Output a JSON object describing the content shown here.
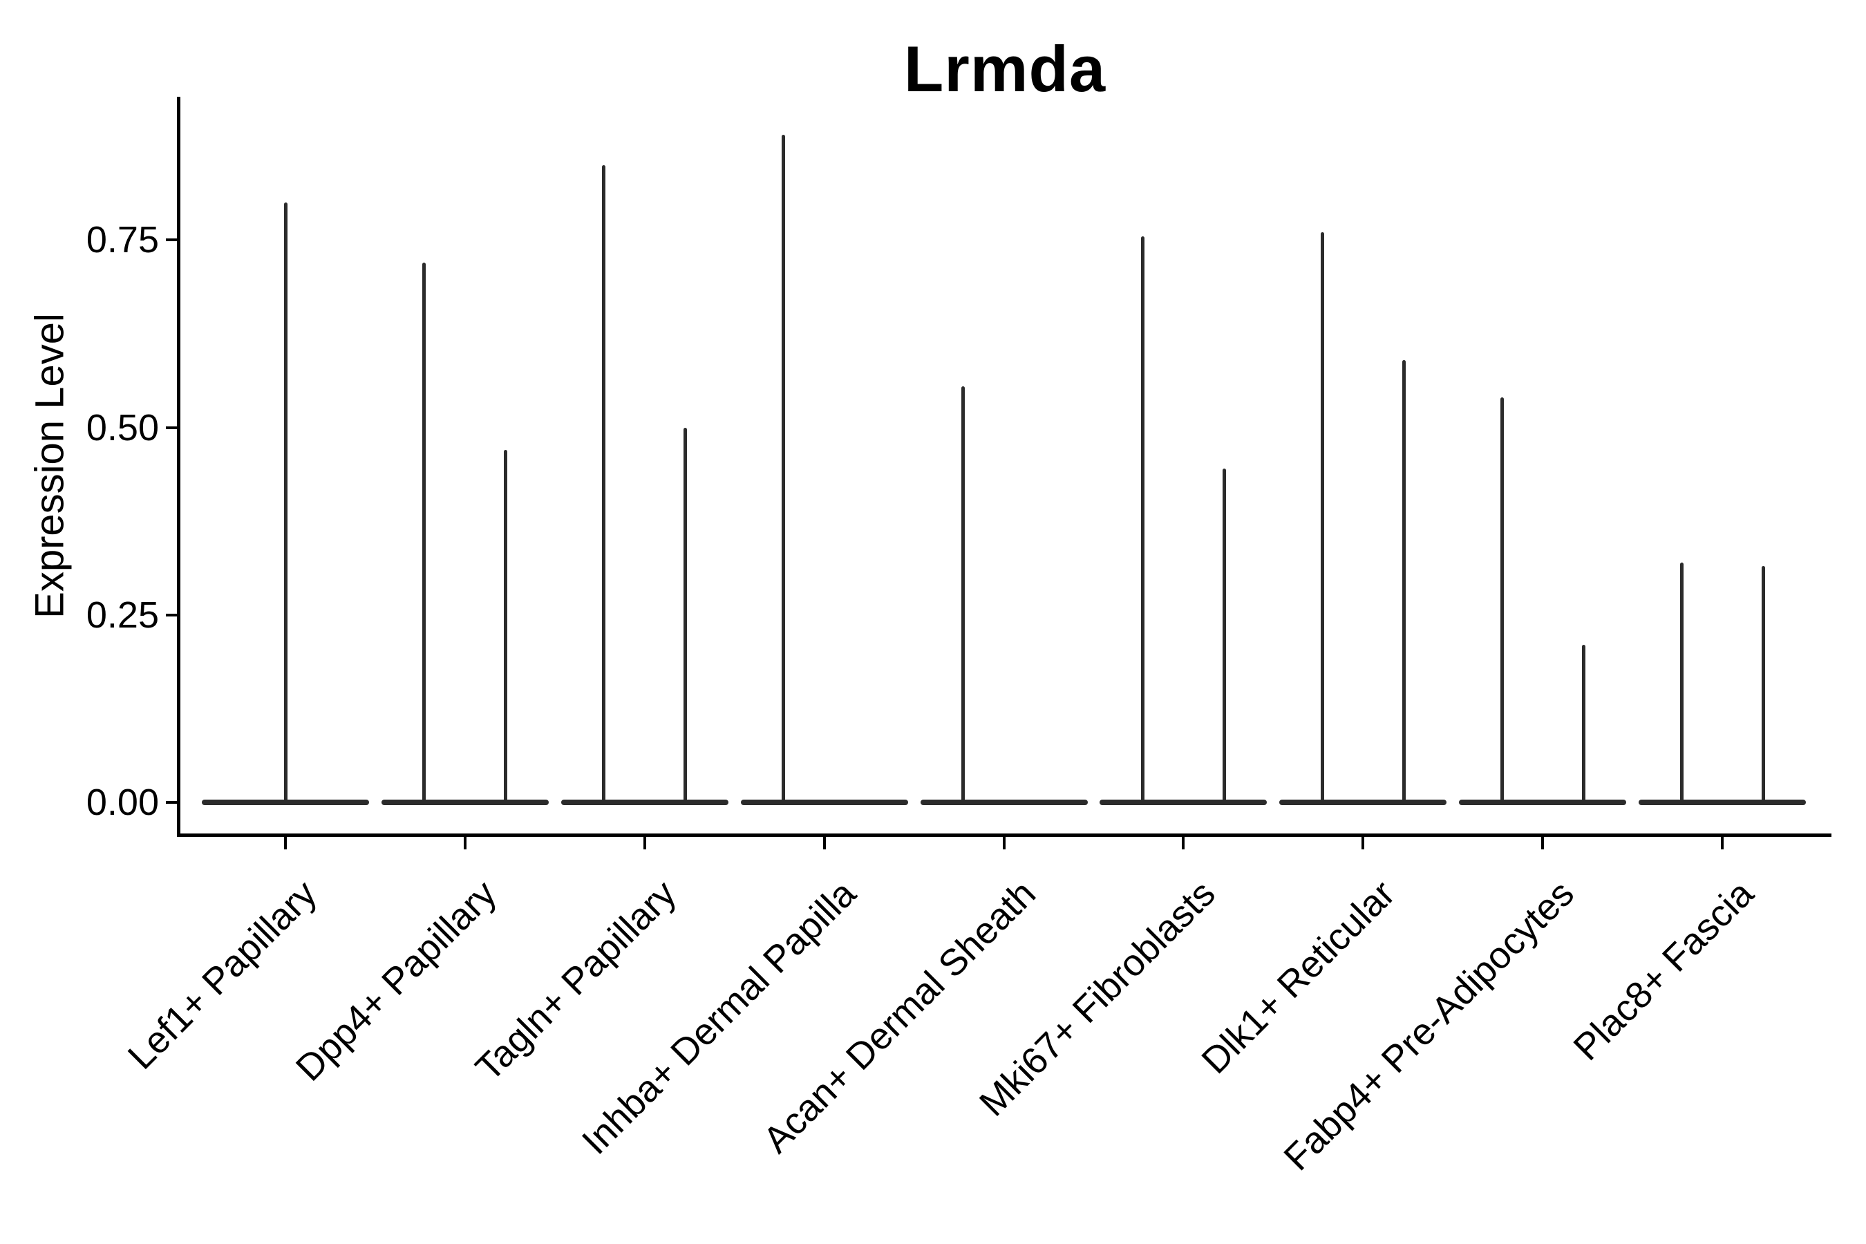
{
  "chart_data": {
    "type": "violin",
    "title": "Lrmda",
    "xlabel": "",
    "ylabel": "Expression Level",
    "ytick_labels": [
      "0.00",
      "0.25",
      "0.50",
      "0.75"
    ],
    "ytick_values": [
      0.0,
      0.25,
      0.5,
      0.75
    ],
    "ylim": [
      0,
      0.94
    ],
    "grid": false,
    "legend": "none",
    "style_note": "Seurat-style single-cell violin plot: each violin collapses to a wide flat base at expression 0 (most cells express nothing) with a thin vertical spike rising to the maximum expression value; some categories contain two side-by-side (dodged) violins",
    "categories": [
      "Lef1+ Papillary",
      "Dpp4+ Papillary",
      "Tagln+ Papillary",
      "Inhba+ Dermal Papilla",
      "Acan+ Dermal Sheath",
      "Mki67+ Fibroblasts",
      "Dlk1+ Reticular",
      "Fabp4+ Pre-Adipocytes",
      "Plac8+ Fascia"
    ],
    "violins": [
      {
        "category": "Lef1+ Papillary",
        "spikes": [
          {
            "dodge": "center",
            "max": 0.8
          }
        ]
      },
      {
        "category": "Dpp4+ Papillary",
        "spikes": [
          {
            "dodge": "left",
            "max": 0.72
          },
          {
            "dodge": "right",
            "max": 0.47
          }
        ]
      },
      {
        "category": "Tagln+ Papillary",
        "spikes": [
          {
            "dodge": "left",
            "max": 0.85
          },
          {
            "dodge": "right",
            "max": 0.5
          }
        ]
      },
      {
        "category": "Inhba+ Dermal Papilla",
        "spikes": [
          {
            "dodge": "left",
            "max": 0.89
          }
        ]
      },
      {
        "category": "Acan+ Dermal Sheath",
        "spikes": [
          {
            "dodge": "left",
            "max": 0.555
          }
        ]
      },
      {
        "category": "Mki67+ Fibroblasts",
        "spikes": [
          {
            "dodge": "left",
            "max": 0.755
          },
          {
            "dodge": "right",
            "max": 0.445
          }
        ]
      },
      {
        "category": "Dlk1+ Reticular",
        "spikes": [
          {
            "dodge": "left",
            "max": 0.76
          },
          {
            "dodge": "right",
            "max": 0.59
          }
        ]
      },
      {
        "category": "Fabp4+ Pre-Adipocytes",
        "spikes": [
          {
            "dodge": "left",
            "max": 0.54
          },
          {
            "dodge": "right",
            "max": 0.21
          }
        ]
      },
      {
        "category": "Plac8+ Fascia",
        "spikes": [
          {
            "dodge": "left",
            "max": 0.32
          },
          {
            "dodge": "right",
            "max": 0.315
          }
        ]
      }
    ],
    "colors": {
      "violin": "#2b2b2b",
      "axis": "#000000",
      "text": "#000000",
      "background": "#ffffff"
    }
  }
}
